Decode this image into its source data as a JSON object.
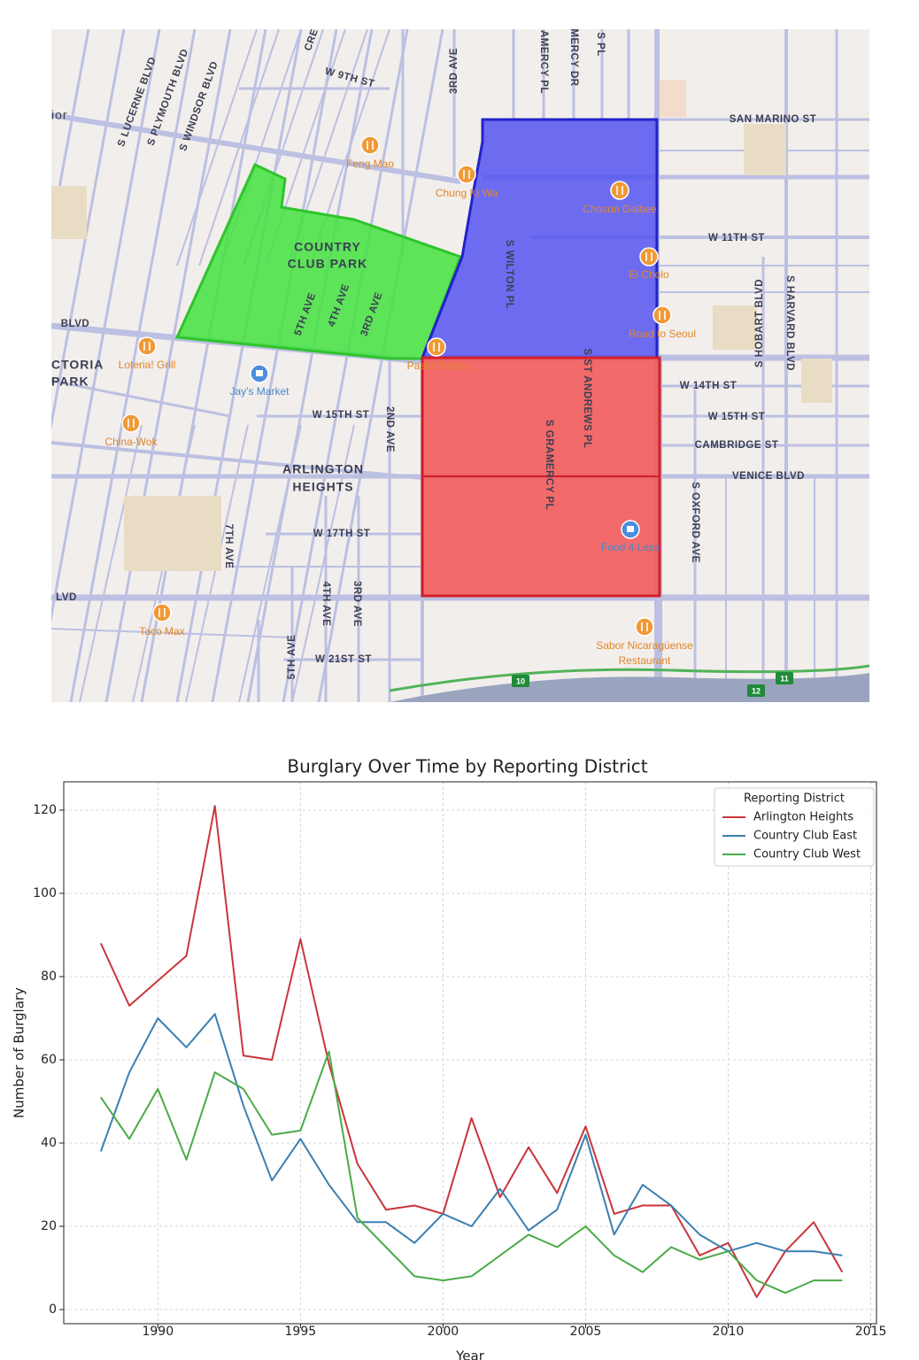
{
  "map": {
    "streets": [
      "W 9TH ST",
      "3RD AVE",
      "SAN MARINO ST",
      "S LUCERNE BLVD",
      "S PLYMOUTH BLVD",
      "S WINDSOR BLVD",
      "W 11TH ST",
      "S WILTON PL",
      "5TH AVE",
      "4TH AVE",
      "3RD AVE",
      "S HOBART BLVD",
      "S HARVARD BLVD",
      "S ST ANDREWS PL",
      "W 14TH ST",
      "W 15TH ST",
      "2ND AVE",
      "W 15TH ST",
      "S GRAMERCY PL",
      "CAMBRIDGE ST",
      "VENICE BLVD",
      "S OXFORD AVE",
      "W 17TH ST",
      "7TH AVE",
      "4TH AVE",
      "3RD AVE",
      "W 21ST ST",
      "BLVD",
      "LVD",
      "5TH AVE",
      "AMERCY PL",
      "MERCY DR",
      "S PL",
      "CRE"
    ],
    "places": [
      "Feng Mao",
      "Chung Ki Wa",
      "Chosun Galbee",
      "El Cholo",
      "Road to Seoul",
      "Pasta Sisters",
      "Loteria! Grill",
      "China-Wok",
      "Taco Max",
      "Sabor Nicaragüense",
      "Restaurant"
    ],
    "stores": [
      "Jay's Market",
      "Food 4 Less"
    ],
    "areas": [
      "COUNTRY",
      "CLUB PARK",
      "ARLINGTON",
      "HEIGHTS",
      "CTORIA",
      "PARK",
      "ior"
    ],
    "shields": [
      "10",
      "11",
      "12"
    ]
  },
  "chart_data": {
    "type": "line",
    "title": "Burglary Over Time by Reporting District",
    "x_label": "Year",
    "y_label": "Number of Burglary",
    "x": [
      1988,
      1989,
      1990,
      1991,
      1992,
      1993,
      1994,
      1995,
      1996,
      1997,
      1998,
      1999,
      2000,
      2001,
      2002,
      2003,
      2004,
      2005,
      2006,
      2007,
      2008,
      2009,
      2010,
      2011,
      2012,
      2013,
      2014
    ],
    "series": [
      {
        "name": "Arlington Heights",
        "color": "#c9353b",
        "values": [
          88,
          73,
          79,
          85,
          121,
          61,
          60,
          89,
          59,
          35,
          24,
          25,
          23,
          46,
          27,
          39,
          28,
          44,
          23,
          25,
          25,
          13,
          16,
          3,
          14,
          21,
          9
        ]
      },
      {
        "name": "Country Club East",
        "color": "#3b7fb1",
        "values": [
          38,
          57,
          70,
          63,
          71,
          49,
          31,
          41,
          30,
          21,
          21,
          16,
          23,
          20,
          29,
          19,
          24,
          42,
          18,
          30,
          25,
          18,
          14,
          16,
          14,
          14,
          13
        ]
      },
      {
        "name": "Country Club West",
        "color": "#4aab48",
        "values": [
          51,
          41,
          53,
          36,
          57,
          53,
          42,
          43,
          62,
          22,
          15,
          8,
          7,
          8,
          13,
          18,
          15,
          20,
          13,
          9,
          15,
          12,
          14,
          7,
          4,
          7,
          7
        ]
      }
    ],
    "legend_title": "Reporting District",
    "legend": "upper right",
    "xlim": [
      1986.7,
      2015.2
    ],
    "ylim": [
      -3.4,
      126.8
    ],
    "xticks": [
      1990,
      1995,
      2000,
      2005,
      2010,
      2015
    ],
    "yticks": [
      0,
      20,
      40,
      60,
      80,
      100,
      120
    ],
    "grid": true
  }
}
